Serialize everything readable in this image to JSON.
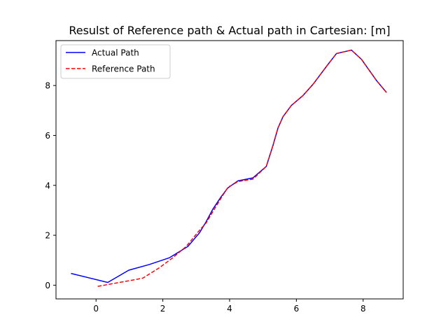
{
  "chart_data": {
    "type": "line",
    "title": "Resulst of Reference path & Actual path in Cartesian: [m]",
    "xlabel": "",
    "ylabel": "",
    "xlim": [
      -1.2,
      9.2
    ],
    "ylim": [
      -0.55,
      9.8
    ],
    "xticks": [
      0,
      2,
      4,
      6,
      8
    ],
    "yticks": [
      0,
      2,
      4,
      6,
      8
    ],
    "grid": false,
    "legend_position": "top-left",
    "series": [
      {
        "name": "Actual Path",
        "color": "#0000ff",
        "style": "solid",
        "x": [
          -0.75,
          0.35,
          0.98,
          1.6,
          2.2,
          2.75,
          3.1,
          3.3,
          3.5,
          3.75,
          3.95,
          4.25,
          4.7,
          5.1,
          5.3,
          5.45,
          5.6,
          5.85,
          6.2,
          6.5,
          6.95,
          7.2,
          7.65,
          7.95,
          8.4,
          8.7
        ],
        "y": [
          0.47,
          0.11,
          0.6,
          0.83,
          1.1,
          1.55,
          2.1,
          2.55,
          3.05,
          3.55,
          3.9,
          4.18,
          4.3,
          4.76,
          5.6,
          6.3,
          6.75,
          7.2,
          7.6,
          8.05,
          8.85,
          9.28,
          9.42,
          9.05,
          8.2,
          7.72
        ]
      },
      {
        "name": "Reference Path",
        "color": "#ff0000",
        "style": "dashed",
        "x": [
          0.05,
          0.45,
          1.0,
          1.4,
          1.9,
          2.3,
          2.7,
          3.1,
          3.3,
          3.5,
          3.75,
          3.95,
          4.25,
          4.7,
          5.1,
          5.3,
          5.45,
          5.6,
          5.85,
          6.2,
          6.5,
          6.95,
          7.2,
          7.65,
          7.95,
          8.4,
          8.7
        ],
        "y": [
          -0.05,
          0.05,
          0.18,
          0.28,
          0.7,
          1.1,
          1.55,
          2.2,
          2.5,
          2.95,
          3.5,
          3.92,
          4.15,
          4.25,
          4.76,
          5.6,
          6.3,
          6.75,
          7.2,
          7.6,
          8.05,
          8.85,
          9.28,
          9.42,
          9.05,
          8.2,
          7.72
        ]
      }
    ]
  }
}
